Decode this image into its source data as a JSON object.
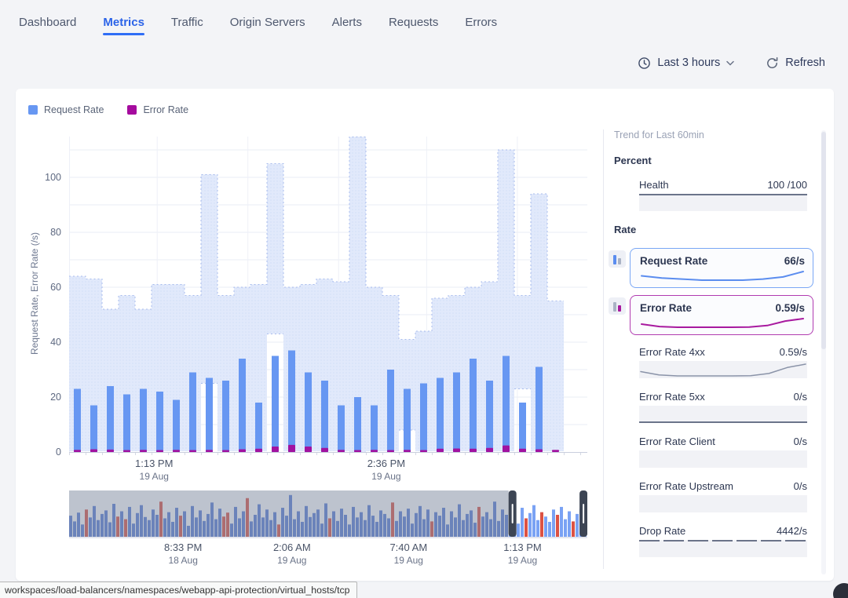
{
  "nav": {
    "tabs": [
      {
        "label": "Dashboard",
        "active": false
      },
      {
        "label": "Metrics",
        "active": true
      },
      {
        "label": "Traffic",
        "active": false
      },
      {
        "label": "Origin Servers",
        "active": false
      },
      {
        "label": "Alerts",
        "active": false
      },
      {
        "label": "Requests",
        "active": false
      },
      {
        "label": "Errors",
        "active": false
      }
    ]
  },
  "controls": {
    "time_range": "Last 3 hours",
    "refresh_label": "Refresh"
  },
  "legend": [
    {
      "label": "Request Rate",
      "color": "#6797f2"
    },
    {
      "label": "Error Rate",
      "color": "#a50b9e"
    }
  ],
  "colors": {
    "accent_blue": "#2b63e8",
    "request_blue": "#6797f2",
    "request_band_fill": "#e1e9fb",
    "error_magenta": "#a112a0",
    "brush_bar": "#5b7fd6",
    "brush_bar_selected": "#7aa2f4",
    "brush_alert_red": "#dc5244",
    "handle_dark": "#3d4554",
    "grid": "#e9ecf5",
    "page_bg": "#f3f4f7"
  },
  "chart_data": [
    {
      "id": "main_timeseries",
      "type": "bar",
      "title": "Request Rate / Error Rate over selected window",
      "ylabel": "Request Rate, Error Rate (/s)",
      "ylim": [
        0,
        114
      ],
      "yticks": [
        0,
        20,
        40,
        60,
        80,
        100
      ],
      "grid": true,
      "x_axis": {
        "ticks": [
          {
            "time": "1:13 PM",
            "date": "19 Aug",
            "pos": 0.164
          },
          {
            "time": "2:36 PM",
            "date": "19 Aug",
            "pos": 0.612
          }
        ]
      },
      "series": [
        {
          "name": "Request Rate (range band)",
          "type": "band",
          "color": "#e1e9fb",
          "hi": [
            64,
            63,
            52,
            57,
            52,
            61,
            61,
            57,
            101,
            57,
            60,
            61,
            105,
            60,
            61,
            63,
            62,
            115,
            60,
            57,
            41,
            44,
            56,
            57,
            60,
            62,
            110,
            57,
            94,
            55
          ],
          "lo": [
            0,
            0,
            0,
            0,
            0,
            0,
            0,
            0,
            25,
            0,
            0,
            0,
            43,
            0,
            0,
            0,
            0,
            0,
            0,
            0,
            8,
            0,
            0,
            0,
            0,
            0,
            0,
            23,
            0,
            0
          ]
        },
        {
          "name": "Request Rate",
          "type": "bar",
          "color": "#6797f2",
          "values": [
            23,
            17,
            24,
            21,
            23,
            22,
            19,
            29,
            27,
            26,
            34,
            18,
            35,
            37,
            29,
            26,
            17,
            20,
            17,
            30,
            23,
            25,
            27,
            29,
            34,
            26,
            35,
            18,
            31,
            0
          ]
        },
        {
          "name": "Error Rate",
          "type": "bar",
          "color": "#a112a0",
          "values": [
            0.8,
            1,
            0.9,
            0.7,
            0.8,
            0.7,
            0.8,
            0.7,
            0.8,
            0.7,
            1,
            1.2,
            2,
            2.6,
            2,
            1.5,
            0.8,
            0.7,
            0.8,
            0.7,
            0.8,
            0.7,
            1.2,
            1.3,
            1.2,
            1.5,
            2.4,
            1.2,
            1,
            0.8
          ]
        }
      ]
    },
    {
      "id": "overview_brush",
      "type": "bar",
      "title": "Traffic overview with brush selection",
      "selection": [
        0.848,
        0.985
      ],
      "values": [
        48,
        35,
        55,
        28,
        62,
        44,
        70,
        38,
        52,
        60,
        33,
        75,
        46,
        58,
        40,
        68,
        30,
        54,
        72,
        45,
        38,
        62,
        50,
        80,
        42,
        56,
        34,
        66,
        48,
        58,
        25,
        70,
        44,
        60,
        36,
        52,
        78,
        40,
        64,
        46,
        55,
        30,
        68,
        42,
        58,
        88,
        35,
        50,
        74,
        44,
        62,
        38,
        56,
        28,
        66,
        48,
        95,
        40,
        58,
        34,
        70,
        45,
        54,
        62,
        30,
        76,
        42,
        58,
        36,
        64,
        50,
        28,
        68,
        44,
        56,
        38,
        72,
        48,
        34,
        60,
        52,
        42,
        78,
        36,
        58,
        46,
        64,
        30,
        54,
        70,
        40,
        62,
        35,
        56,
        48,
        66,
        28,
        58,
        44,
        74,
        38,
        52,
        60,
        32,
        68,
        46,
        56,
        40,
        80,
        36,
        62,
        50,
        44,
        58,
        30,
        66,
        42,
        54,
        72,
        38,
        56,
        46,
        34,
        62,
        50,
        68,
        40,
        58,
        35,
        52,
        64,
        44
      ],
      "alert_indices": [
        4,
        12,
        14,
        23,
        28,
        39,
        40,
        45,
        53,
        66,
        82,
        92,
        104,
        116,
        120,
        124,
        128
      ],
      "x_axis": {
        "ticks": [
          {
            "time": "8:33 PM",
            "date": "18 Aug",
            "pos": 0.22
          },
          {
            "time": "2:06 AM",
            "date": "19 Aug",
            "pos": 0.43
          },
          {
            "time": "7:40 AM",
            "date": "19 Aug",
            "pos": 0.655
          },
          {
            "time": "1:13 PM",
            "date": "19 Aug",
            "pos": 0.875
          }
        ]
      }
    }
  ],
  "sidebar": {
    "title": "Trend for Last 60min",
    "sections": [
      {
        "heading": "Percent",
        "rows": [
          {
            "label": "Health",
            "value": "100 /100",
            "spark": "flat-top",
            "line_color": "#3f4a66"
          }
        ]
      },
      {
        "heading": "Rate",
        "rows": [
          {
            "label": "Request Rate",
            "value": "66/s",
            "card": true,
            "color": "#5b8def",
            "border": "#7aa7f5",
            "spark": [
              62,
              60,
              59,
              58,
              58,
              58,
              59,
              61,
              66
            ]
          },
          {
            "label": "Error Rate",
            "value": "0.59/s",
            "card": true,
            "color": "#a81a9f",
            "border": "#b13bb0",
            "spark": [
              0.28,
              0.14,
              0.1,
              0.1,
              0.1,
              0.1,
              0.11,
              0.2,
              0.45,
              0.59
            ]
          },
          {
            "label": "Error Rate 4xx",
            "value": "0.59/s",
            "color": "#8a93a8",
            "spark": [
              0.28,
              0.14,
              0.1,
              0.1,
              0.1,
              0.1,
              0.11,
              0.2,
              0.45,
              0.59
            ]
          },
          {
            "label": "Error Rate 5xx",
            "value": "0/s",
            "spark": "flat-bottom",
            "line_color": "#3f4a66"
          },
          {
            "label": "Error Rate Client",
            "value": "0/s",
            "spark": "none"
          },
          {
            "label": "Error Rate Upstream",
            "value": "0/s",
            "spark": "none"
          },
          {
            "label": "Drop Rate",
            "value": "4442/s",
            "spark": "flat-top",
            "line_color": "#3f4a66",
            "dash": true
          }
        ]
      }
    ]
  },
  "footer": {
    "url": "workspaces/load-balancers/namespaces/webapp-api-protection/virtual_hosts/tcp"
  }
}
